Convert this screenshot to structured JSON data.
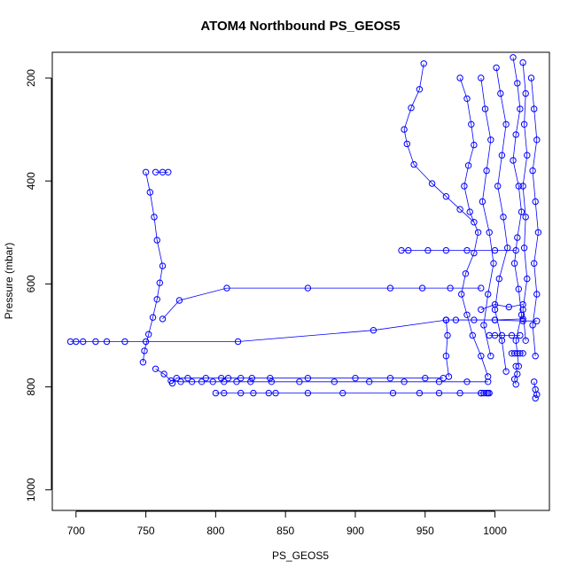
{
  "chart_data": {
    "type": "scatter",
    "title": "ATOM4 Northbound PS_GEOS5",
    "xlabel": "PS_GEOS5",
    "ylabel": "Pressure (mbar)",
    "xlim": [
      683,
      1039
    ],
    "ylim": [
      1040,
      150
    ],
    "y_reversed": true,
    "x_ticks": [
      700,
      750,
      800,
      850,
      900,
      950,
      1000
    ],
    "y_ticks": [
      200,
      400,
      600,
      800,
      1000
    ],
    "grid": false,
    "legend": "none",
    "point_style": "open-circle",
    "color": "#0000ff",
    "series": [
      {
        "x": [
          696,
          700,
          705,
          714,
          722,
          735,
          750,
          816,
          913,
          965,
          1000,
          1020
        ],
        "y": [
          712,
          712,
          712,
          712,
          712,
          712,
          712,
          712,
          690,
          670,
          670,
          668
        ]
      },
      {
        "x": [
          750,
          753,
          756,
          758,
          762,
          760,
          758,
          755,
          752,
          749,
          748
        ],
        "y": [
          383,
          422,
          470,
          515,
          565,
          598,
          630,
          665,
          698,
          730,
          752
        ]
      },
      {
        "x": [
          757,
          762,
          766
        ],
        "y": [
          383,
          383,
          383
        ]
      },
      {
        "x": [
          757,
          763,
          768,
          775,
          783,
          790,
          798,
          806,
          815,
          825,
          840,
          860,
          885,
          910,
          935,
          960,
          980,
          995
        ],
        "y": [
          765,
          775,
          788,
          790,
          790,
          790,
          790,
          790,
          790,
          790,
          790,
          790,
          790,
          790,
          790,
          790,
          790,
          790
        ]
      },
      {
        "x": [
          800,
          806,
          818,
          827,
          838,
          843,
          866,
          891,
          927,
          946,
          960,
          975,
          990,
          995
        ],
        "y": [
          812,
          812,
          812,
          812,
          812,
          812,
          812,
          812,
          812,
          812,
          812,
          812,
          812,
          812
        ]
      },
      {
        "x": [
          769,
          772,
          780,
          793,
          804,
          809,
          818,
          826,
          839,
          866,
          900,
          925,
          950,
          963
        ],
        "y": [
          793,
          783,
          783,
          783,
          783,
          783,
          783,
          783,
          783,
          783,
          783,
          783,
          783,
          783
        ]
      },
      {
        "x": [
          762,
          774,
          808,
          866,
          925,
          948,
          968,
          990
        ],
        "y": [
          668,
          632,
          608,
          608,
          608,
          608,
          608,
          608
        ]
      },
      {
        "x": [
          933,
          938,
          952,
          965,
          980,
          1000,
          1015
        ],
        "y": [
          535,
          535,
          535,
          535,
          535,
          535,
          535
        ]
      },
      {
        "x": [
          949,
          946,
          940,
          935,
          937,
          942,
          955,
          965,
          975,
          985
        ],
        "y": [
          172,
          222,
          258,
          300,
          328,
          368,
          405,
          430,
          455,
          480
        ]
      },
      {
        "x": [
          965,
          972,
          985,
          1000,
          1020,
          1030
        ],
        "y": [
          670,
          670,
          670,
          670,
          672,
          672
        ]
      },
      {
        "x": [
          990,
          1000,
          1010,
          1020
        ],
        "y": [
          650,
          640,
          645,
          640
        ]
      },
      {
        "x": [
          975,
          980,
          983,
          985,
          981,
          978,
          982,
          988,
          985,
          979,
          976,
          980,
          984,
          990,
          995
        ],
        "y": [
          200,
          240,
          290,
          330,
          370,
          410,
          460,
          500,
          540,
          580,
          620,
          660,
          700,
          740,
          780
        ]
      },
      {
        "x": [
          990,
          993,
          997,
          994,
          991,
          996,
          999,
          995,
          992,
          997
        ],
        "y": [
          200,
          260,
          320,
          380,
          440,
          500,
          560,
          620,
          680,
          740
        ]
      },
      {
        "x": [
          1001,
          1004,
          1008,
          1005,
          1002,
          1006,
          1009,
          1003,
          1000,
          1005,
          1008
        ],
        "y": [
          180,
          230,
          290,
          350,
          410,
          470,
          530,
          590,
          650,
          710,
          770
        ]
      },
      {
        "x": [
          1013,
          1016,
          1018,
          1015,
          1013,
          1017,
          1019,
          1016,
          1014,
          1017,
          1019,
          1015,
          1017
        ],
        "y": [
          160,
          210,
          260,
          310,
          360,
          410,
          460,
          510,
          560,
          610,
          660,
          710,
          760
        ]
      },
      {
        "x": [
          1020,
          1022,
          1021,
          1023,
          1020,
          1022,
          1021,
          1023,
          1020,
          1022
        ],
        "y": [
          170,
          230,
          290,
          350,
          410,
          470,
          530,
          590,
          650,
          710
        ]
      },
      {
        "x": [
          1026,
          1028,
          1030,
          1027,
          1029,
          1031,
          1028,
          1030,
          1027,
          1029
        ],
        "y": [
          200,
          260,
          320,
          380,
          440,
          500,
          560,
          620,
          680,
          740
        ]
      },
      {
        "x": [
          1028,
          1029,
          1030,
          1029
        ],
        "y": [
          790,
          805,
          815,
          822
        ]
      },
      {
        "x": [
          1012,
          1014,
          1016,
          1018,
          1020
        ],
        "y": [
          735,
          735,
          735,
          735,
          735
        ]
      },
      {
        "x": [
          996,
          1000,
          1005,
          1012,
          1018
        ],
        "y": [
          700,
          700,
          700,
          700,
          700
        ]
      },
      {
        "x": [
          990,
          992,
          994,
          996
        ],
        "y": [
          812,
          812,
          812,
          812
        ]
      },
      {
        "x": [
          1015,
          1016,
          1014,
          1015
        ],
        "y": [
          760,
          775,
          785,
          795
        ]
      },
      {
        "x": [
          965,
          966,
          965,
          967
        ],
        "y": [
          670,
          700,
          740,
          780
        ]
      }
    ]
  }
}
